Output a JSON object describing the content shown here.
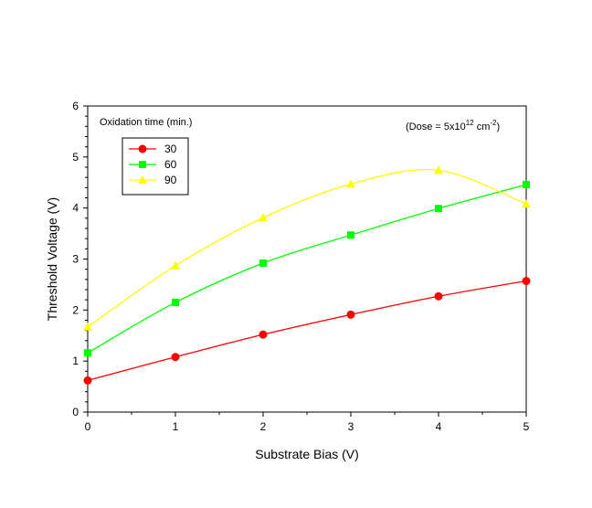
{
  "chart_data": {
    "type": "line",
    "x": [
      0,
      1,
      2,
      3,
      4,
      5
    ],
    "xlabel": "Substrate Bias (V)",
    "ylabel": "Threshold Voltage (V)",
    "xlim": [
      0,
      5
    ],
    "ylim": [
      0,
      6
    ],
    "xticks": [
      "0",
      "1",
      "2",
      "3",
      "4",
      "5"
    ],
    "yticks": [
      "0",
      "1",
      "2",
      "3",
      "4",
      "5",
      "6"
    ],
    "grid": false,
    "legend_title": "Oxidation time (min.)",
    "legend_position": "top-left",
    "annotation": {
      "prefix": "(Dose = 5x10",
      "exponent": "12",
      "unit": " cm",
      "unit_exponent": "-2",
      "suffix": ")"
    },
    "series": [
      {
        "name": "30",
        "color": "#ff0000",
        "marker": "circle",
        "values": [
          0.62,
          1.08,
          1.52,
          1.91,
          2.27,
          2.57
        ]
      },
      {
        "name": "60",
        "color": "#00ff00",
        "marker": "square",
        "values": [
          1.16,
          2.15,
          2.92,
          3.47,
          3.99,
          4.46
        ]
      },
      {
        "name": "90",
        "color": "#ffff00",
        "marker": "triangle",
        "values": [
          1.67,
          2.87,
          3.81,
          4.47,
          4.74,
          4.08
        ]
      }
    ]
  }
}
